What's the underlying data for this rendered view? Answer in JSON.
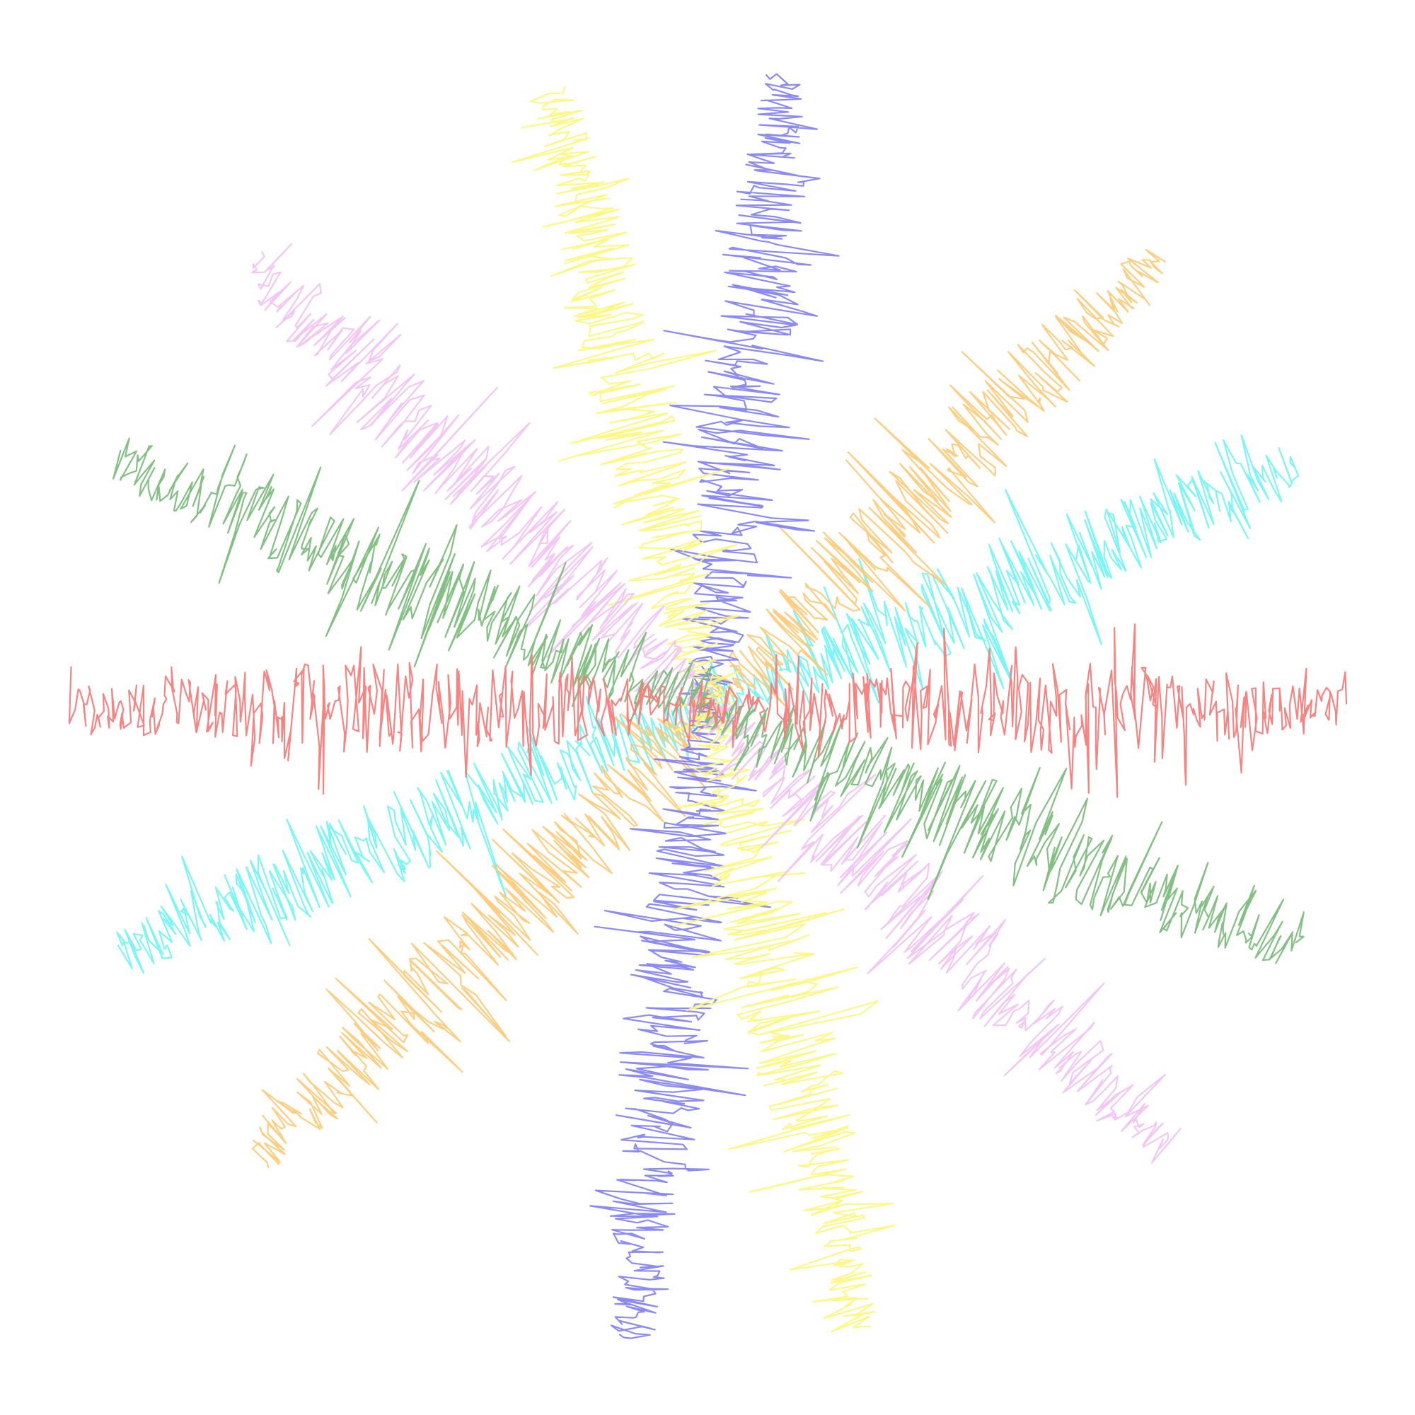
{
  "artwork": {
    "background": "#ffffff",
    "rays": [
      {
        "name": "red",
        "color": "#f47d7b",
        "angle_deg": 0,
        "opacity": 0.95
      },
      {
        "name": "cyan",
        "color": "#6ff4f4",
        "angle_deg": 157.5,
        "opacity": 0.9
      },
      {
        "name": "orange",
        "color": "#fdc873",
        "angle_deg": 135,
        "opacity": 0.9
      },
      {
        "name": "blue",
        "color": "#7f7df2",
        "angle_deg": 97,
        "opacity": 0.9
      },
      {
        "name": "yellow",
        "color": "#fdf67b",
        "angle_deg": 76,
        "opacity": 0.9
      },
      {
        "name": "pink",
        "color": "#f1c1f2",
        "angle_deg": 44,
        "opacity": 0.9
      },
      {
        "name": "green",
        "color": "#7dbc7d",
        "angle_deg": 22.5,
        "opacity": 0.95
      }
    ]
  }
}
